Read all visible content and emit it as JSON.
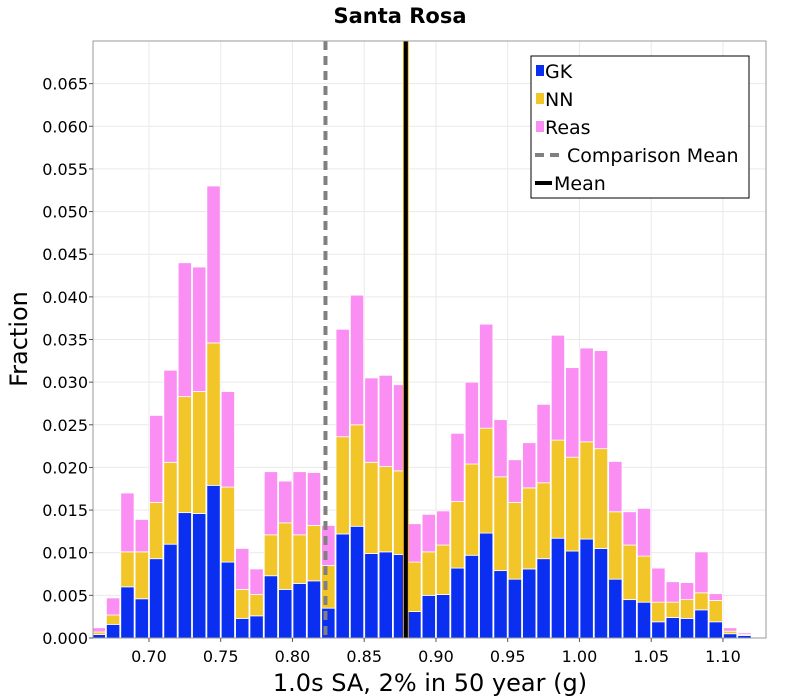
{
  "chart_data": {
    "type": "bar",
    "stacked": true,
    "title": "Santa Rosa",
    "xlabel": "1.0s SA, 2% in 50 year (g)",
    "ylabel": "Fraction",
    "xlim": [
      0.661,
      1.13
    ],
    "ylim": [
      0,
      0.07
    ],
    "bin_width": 0.01,
    "x_ticks": [
      0.7,
      0.75,
      0.8,
      0.85,
      0.9,
      0.95,
      1.0,
      1.05,
      1.1
    ],
    "x_tick_labels": [
      "0.70",
      "0.75",
      "0.80",
      "0.85",
      "0.90",
      "0.95",
      "1.00",
      "1.05",
      "1.10"
    ],
    "y_ticks": [
      0,
      0.005,
      0.01,
      0.015,
      0.02,
      0.025,
      0.03,
      0.035,
      0.04,
      0.045,
      0.05,
      0.055,
      0.06,
      0.065
    ],
    "y_tick_labels": [
      "0.000",
      "0.005",
      "0.010",
      "0.015",
      "0.020",
      "0.025",
      "0.030",
      "0.035",
      "0.040",
      "0.045",
      "0.050",
      "0.055",
      "0.060",
      "0.065"
    ],
    "bins": [
      0.66,
      0.67,
      0.68,
      0.69,
      0.7,
      0.71,
      0.72,
      0.73,
      0.74,
      0.75,
      0.76,
      0.77,
      0.78,
      0.79,
      0.8,
      0.81,
      0.82,
      0.83,
      0.84,
      0.85,
      0.86,
      0.87,
      0.88,
      0.89,
      0.9,
      0.91,
      0.92,
      0.93,
      0.94,
      0.95,
      0.96,
      0.97,
      0.98,
      0.99,
      1.0,
      1.01,
      1.02,
      1.03,
      1.04,
      1.05,
      1.06,
      1.07,
      1.08,
      1.09,
      1.1,
      1.11
    ],
    "series": [
      {
        "name": "GK",
        "color": "#0a2ff0",
        "values": [
          0.0004,
          0.0016,
          0.006,
          0.0046,
          0.0093,
          0.011,
          0.0147,
          0.0146,
          0.0179,
          0.0089,
          0.0023,
          0.0026,
          0.0073,
          0.0057,
          0.0064,
          0.0067,
          0.0035,
          0.0122,
          0.0131,
          0.0099,
          0.0101,
          0.0098,
          0.0031,
          0.005,
          0.0051,
          0.0082,
          0.0097,
          0.0123,
          0.0079,
          0.0069,
          0.0081,
          0.0093,
          0.0117,
          0.0102,
          0.0116,
          0.0105,
          0.0069,
          0.0045,
          0.0042,
          0.0019,
          0.0024,
          0.0023,
          0.0033,
          0.0019,
          0.0005,
          0.0003
        ]
      },
      {
        "name": "NN",
        "color": "#f2c529",
        "values": [
          0.0003,
          0.0011,
          0.0041,
          0.0055,
          0.0066,
          0.0096,
          0.0136,
          0.0143,
          0.0167,
          0.0088,
          0.0034,
          0.0025,
          0.0048,
          0.0078,
          0.0057,
          0.0065,
          0.005,
          0.0114,
          0.0119,
          0.0107,
          0.01,
          0.0098,
          0.0058,
          0.0051,
          0.0058,
          0.0078,
          0.0107,
          0.0123,
          0.011,
          0.009,
          0.0095,
          0.0089,
          0.0115,
          0.011,
          0.0114,
          0.0117,
          0.0079,
          0.0064,
          0.0054,
          0.0023,
          0.0018,
          0.0022,
          0.002,
          0.0025,
          0.0003,
          0.0001
        ]
      },
      {
        "name": "Reas",
        "color": "#fb8ef3",
        "values": [
          0.0005,
          0.002,
          0.0069,
          0.0038,
          0.0102,
          0.0108,
          0.0157,
          0.0146,
          0.0184,
          0.0112,
          0.0048,
          0.003,
          0.0074,
          0.0049,
          0.0074,
          0.0062,
          0.0047,
          0.0126,
          0.0152,
          0.0099,
          0.0107,
          0.0101,
          0.0045,
          0.0044,
          0.004,
          0.008,
          0.0096,
          0.0122,
          0.0067,
          0.005,
          0.0053,
          0.0092,
          0.0123,
          0.0105,
          0.011,
          0.0115,
          0.0059,
          0.0039,
          0.0056,
          0.004,
          0.0024,
          0.002,
          0.0048,
          0.0008,
          0.0004,
          0.0002
        ]
      }
    ],
    "lines": [
      {
        "name": "Comparison Mean",
        "x": 0.823,
        "color": "#808080",
        "style": "dashed"
      },
      {
        "name": "Mean",
        "x": 0.879,
        "color": "#000000",
        "style": "solid"
      }
    ],
    "orange_band": {
      "x0": 0.877,
      "x1": 0.881,
      "color": "#f2b517"
    },
    "legend": {
      "position": "top-right",
      "items": [
        {
          "label": "GK",
          "kind": "patch",
          "color": "#0a2ff0"
        },
        {
          "label": "NN",
          "kind": "patch",
          "color": "#f2c529"
        },
        {
          "label": "Reas",
          "kind": "patch",
          "color": "#fb8ef3"
        },
        {
          "label": "Comparison Mean",
          "kind": "dashed",
          "color": "#808080"
        },
        {
          "label": "Mean",
          "kind": "solid",
          "color": "#000000"
        }
      ]
    },
    "grid": true
  }
}
